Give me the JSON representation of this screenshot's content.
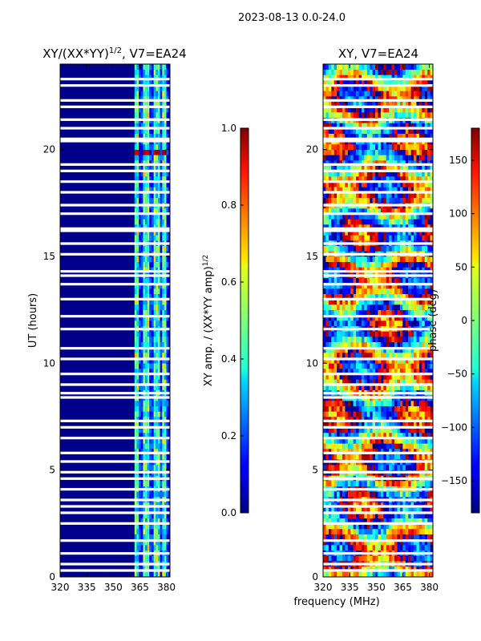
{
  "suptitle": "2023-08-13 0.0-24.0",
  "shared_xlabel": "frequency (MHz)",
  "chart_data": [
    {
      "type": "heatmap",
      "title_main": "XY/(XX*YY)",
      "title_sup": "1/2",
      "title_rest": ", V7=EA24",
      "ylabel": "UT (hours)",
      "xlim": [
        320,
        382
      ],
      "ylim": [
        0,
        24
      ],
      "xticks": [
        "320",
        "335",
        "350",
        "365",
        "380"
      ],
      "xtick_values": [
        320,
        335,
        350,
        365,
        380
      ],
      "yticks": [
        "0",
        "5",
        "10",
        "15",
        "20"
      ],
      "ytick_values": [
        0,
        5,
        10,
        15,
        20
      ],
      "active_band_mhz": [
        362,
        380
      ],
      "bright_channels_mhz": [
        363,
        368,
        374,
        378
      ],
      "strong_feature_hours": [
        19.6,
        20.0
      ],
      "colorbar": {
        "label_main": "XY amp. / (XX*YY amp)",
        "label_sup": "1/2",
        "range": [
          0.0,
          1.0
        ],
        "ticks": [
          "0.0",
          "0.2",
          "0.4",
          "0.6",
          "0.8",
          "1.0"
        ],
        "tick_values": [
          0.0,
          0.2,
          0.4,
          0.6,
          0.8,
          1.0
        ]
      }
    },
    {
      "type": "heatmap",
      "title_main": "XY, V7=EA24",
      "xlim": [
        320,
        382
      ],
      "ylim": [
        0,
        24
      ],
      "xticks": [
        "320",
        "335",
        "350",
        "365",
        "380"
      ],
      "xtick_values": [
        320,
        335,
        350,
        365,
        380
      ],
      "yticks": [
        "0",
        "5",
        "10",
        "15",
        "20"
      ],
      "ytick_values": [
        0,
        5,
        10,
        15,
        20
      ],
      "colorbar": {
        "label_main": "phase (deg)",
        "range": [
          -180,
          180
        ],
        "ticks": [
          "−150",
          "−100",
          "−50",
          "0",
          "50",
          "100",
          "150"
        ],
        "tick_values": [
          -150,
          -100,
          -50,
          0,
          50,
          100,
          150
        ]
      }
    }
  ],
  "flagged_gaps_hours": [
    0.3,
    0.6,
    1.1,
    1.7,
    2.5,
    3.0,
    3.3,
    3.6,
    4.1,
    4.6,
    4.9,
    5.4,
    5.8,
    6.5,
    7.0,
    7.3,
    8.4,
    8.6,
    9.0,
    9.5,
    10.2,
    10.7,
    11.6,
    12.2,
    13.0,
    13.7,
    14.1,
    14.3,
    15.1,
    15.6,
    16.2,
    16.3,
    17.0,
    17.4,
    18.0,
    18.5,
    19.0,
    19.3,
    20.4,
    20.5,
    21.0,
    21.4,
    22.0,
    22.3,
    23.0,
    23.3
  ]
}
